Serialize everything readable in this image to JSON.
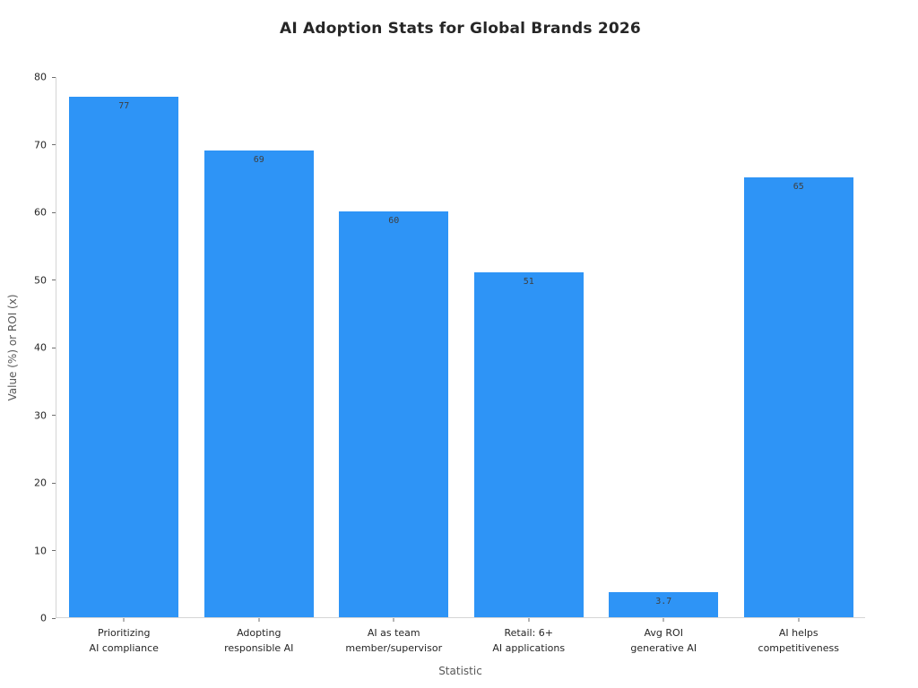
{
  "chart_data": {
    "type": "bar",
    "title": "AI Adoption Stats for Global Brands 2026",
    "xlabel": "Statistic",
    "ylabel": "Value (%) or ROI (x)",
    "categories": [
      "Prioritizing\nAI compliance",
      "Adopting\nresponsible AI",
      "AI as team\nmember/supervisor",
      "Retail: 6+\nAI applications",
      "Avg ROI\ngenerative AI",
      "AI helps\ncompetitiveness"
    ],
    "values": [
      77,
      69,
      60,
      51,
      3.7,
      65
    ],
    "value_labels": [
      "77",
      "69",
      "60",
      "51",
      "3.7",
      "65"
    ],
    "ylim": [
      0,
      80
    ],
    "yticks": [
      0,
      10,
      20,
      30,
      40,
      50,
      60,
      70,
      80
    ],
    "grid": false,
    "legend": "none",
    "bar_width_fraction": 0.81
  },
  "colors": {
    "bar": "#2e94f6",
    "spine": "#d5d5d5",
    "tick": "#6e6e6e",
    "text_dark": "#262626",
    "text_muted": "#595959",
    "value_text": "#3f3f3f",
    "background": "#ffffff"
  }
}
